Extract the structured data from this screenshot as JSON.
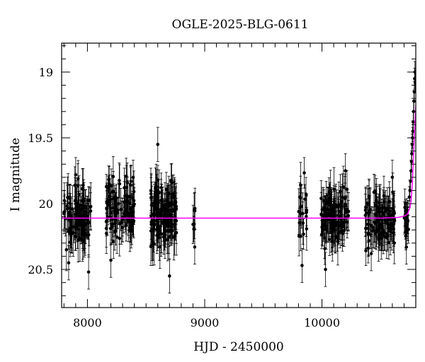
{
  "chart_data": {
    "type": "scatter",
    "title": "OGLE-2025-BLG-0611",
    "xlabel": "HJD - 2450000",
    "ylabel": "I magnitude",
    "xlim": [
      7780,
      10800
    ],
    "ylim": [
      20.79,
      18.78
    ],
    "y_inverted": true,
    "x_ticks": [
      8000,
      9000,
      10000
    ],
    "y_ticks": [
      19,
      19.5,
      20,
      20.5
    ],
    "colors": {
      "points": "#000000",
      "errorbars": "#000000",
      "model": "#ff00ff"
    },
    "model": {
      "name": "",
      "baseline": 20.11,
      "curve": [
        [
          7780,
          20.11
        ],
        [
          10500,
          20.11
        ],
        [
          10650,
          20.105
        ],
        [
          10700,
          20.095
        ],
        [
          10730,
          20.08
        ],
        [
          10750,
          20.03
        ],
        [
          10760,
          19.98
        ],
        [
          10770,
          19.85
        ],
        [
          10780,
          19.65
        ],
        [
          10790,
          19.45
        ],
        [
          10800,
          19.25
        ]
      ]
    },
    "season_groups": [
      {
        "x_range": [
          7800,
          8030
        ],
        "y_center": 20.1,
        "y_spread": 0.35,
        "n": 110,
        "err": 0.14
      },
      {
        "x_range": [
          8160,
          8400
        ],
        "y_center": 20.03,
        "y_spread": 0.35,
        "n": 110,
        "err": 0.13
      },
      {
        "x_range": [
          8540,
          8760
        ],
        "y_center": 20.08,
        "y_spread": 0.38,
        "n": 140,
        "err": 0.14
      },
      {
        "x_range": [
          8900,
          8920
        ],
        "y_center": 20.15,
        "y_spread": 0.25,
        "n": 5,
        "err": 0.12
      },
      {
        "x_range": [
          9800,
          9870
        ],
        "y_center": 20.05,
        "y_spread": 0.35,
        "n": 20,
        "err": 0.14
      },
      {
        "x_range": [
          9990,
          10230
        ],
        "y_center": 20.1,
        "y_spread": 0.33,
        "n": 120,
        "err": 0.14
      },
      {
        "x_range": [
          10370,
          10620
        ],
        "y_center": 20.12,
        "y_spread": 0.33,
        "n": 110,
        "err": 0.14
      },
      {
        "x_range": [
          10700,
          10740
        ],
        "y_center": 20.12,
        "y_spread": 0.22,
        "n": 18,
        "err": 0.12
      }
    ],
    "rise_points": [
      [
        10745,
        19.95
      ],
      [
        10750,
        19.9
      ],
      [
        10755,
        19.83
      ],
      [
        10760,
        19.75
      ],
      [
        10763,
        19.68
      ],
      [
        10766,
        19.62
      ],
      [
        10769,
        19.55
      ],
      [
        10772,
        19.5
      ],
      [
        10775,
        19.45
      ],
      [
        10778,
        19.38
      ],
      [
        10781,
        19.3
      ],
      [
        10784,
        19.22
      ],
      [
        10787,
        19.15
      ],
      [
        10790,
        19.05
      ],
      [
        10793,
        19.0
      ],
      [
        10796,
        19.08
      ]
    ],
    "sample_points": [
      [
        7840,
        20.45
      ],
      [
        7900,
        19.78
      ],
      [
        8010,
        20.52
      ],
      [
        8200,
        20.43
      ],
      [
        8390,
        19.8
      ],
      [
        8600,
        19.55
      ],
      [
        8700,
        20.55
      ],
      [
        8910,
        20.05
      ],
      [
        8915,
        20.33
      ],
      [
        9830,
        20.47
      ],
      [
        10030,
        20.5
      ],
      [
        10200,
        19.75
      ],
      [
        10420,
        20.38
      ],
      [
        10600,
        19.8
      ],
      [
        10720,
        20.33
      ]
    ]
  }
}
